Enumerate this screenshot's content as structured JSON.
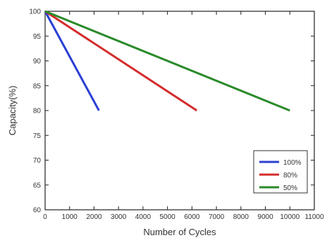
{
  "chart_data": {
    "type": "line",
    "title": "",
    "xlabel": "Number of Cycles",
    "ylabel": "Capacity(%)",
    "xlim": [
      0,
      11000
    ],
    "ylim": [
      60,
      100
    ],
    "x_ticks": [
      0,
      1000,
      2000,
      3000,
      4000,
      5000,
      6000,
      7000,
      8000,
      9000,
      10000,
      11000
    ],
    "y_ticks": [
      60,
      65,
      70,
      75,
      80,
      85,
      90,
      95,
      100
    ],
    "grid": false,
    "legend_position": "bottom-right",
    "series": [
      {
        "name": "100%",
        "color": "#2b3fd4",
        "points": [
          [
            0,
            100
          ],
          [
            2200,
            80
          ]
        ]
      },
      {
        "name": "80%",
        "color": "#d42b2b",
        "points": [
          [
            0,
            100
          ],
          [
            6200,
            80
          ]
        ]
      },
      {
        "name": "50%",
        "color": "#2a8a2a",
        "points": [
          [
            0,
            100
          ],
          [
            10000,
            80
          ]
        ]
      }
    ]
  }
}
